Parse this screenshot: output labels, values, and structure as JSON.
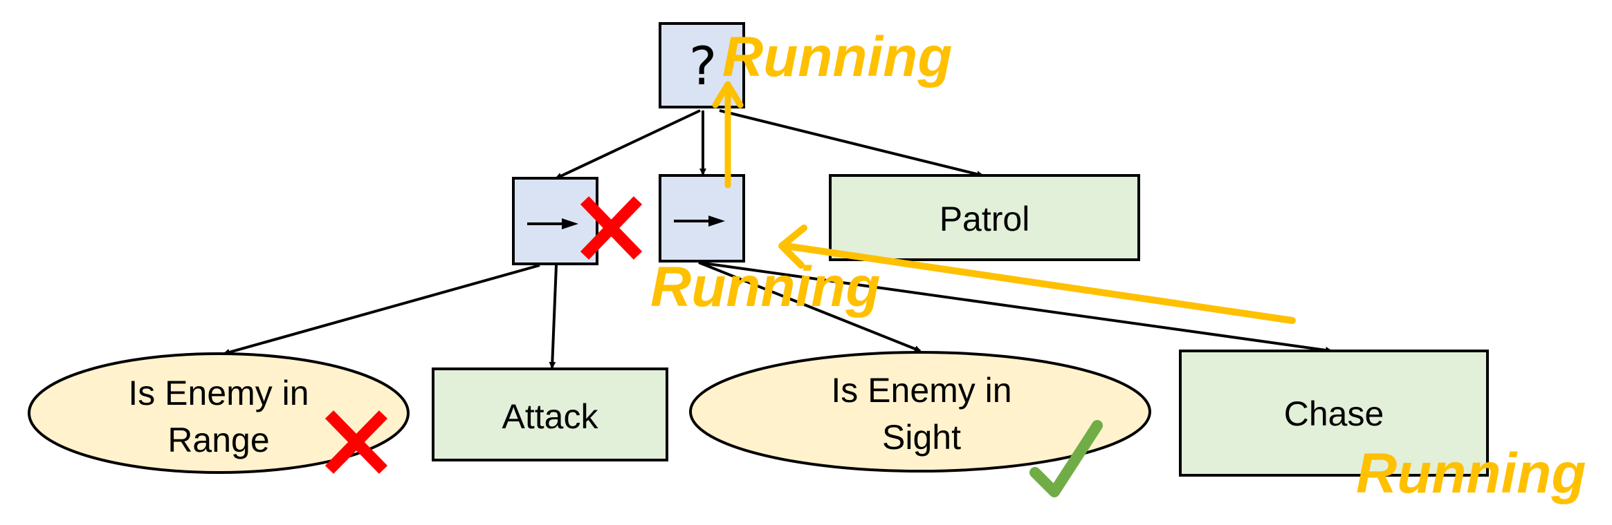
{
  "colors": {
    "composite_fill": "#dae3f3",
    "action_fill": "#e2efd9",
    "condition_fill": "#fff2cc",
    "border": "#000000",
    "status": "#ffc000",
    "fail": "#ff0000",
    "success": "#70ad47"
  },
  "tree": {
    "root": {
      "type": "selector",
      "symbol": "?",
      "status": "Running"
    },
    "sequence_left": {
      "type": "sequence",
      "symbol": "→",
      "result_icon": "cross-icon"
    },
    "sequence_mid": {
      "type": "sequence",
      "symbol": "→",
      "status": "Running"
    },
    "patrol": {
      "type": "action",
      "label": "Patrol"
    },
    "enemy_in_range": {
      "type": "condition",
      "label_line1": "Is Enemy in",
      "label_line2": "Range",
      "result_icon": "cross-icon"
    },
    "attack": {
      "type": "action",
      "label": "Attack"
    },
    "enemy_in_sight": {
      "type": "condition",
      "label_line1": "Is Enemy in",
      "label_line2": "Sight",
      "result_icon": "check-icon"
    },
    "chase": {
      "type": "action",
      "label": "Chase",
      "status": "Running"
    }
  }
}
